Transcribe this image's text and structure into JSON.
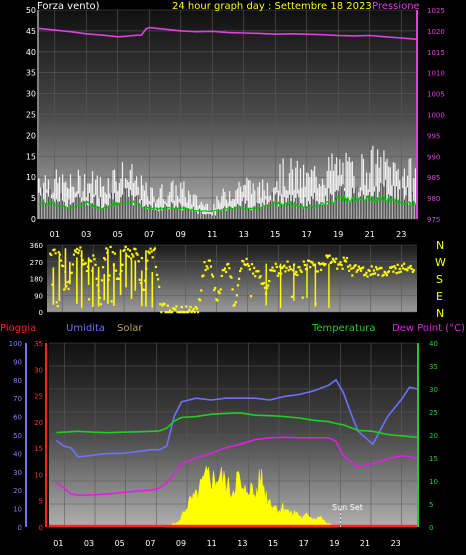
{
  "header": {
    "left_label": "Forza vento)",
    "title": "24 hour graph day : Settembre 18 2023",
    "right_label": "Pressione"
  },
  "colors": {
    "background": "#000000",
    "wind": "#ffffff",
    "gust_avg": "#00c800",
    "pressure": "#e040e0",
    "direction": "#ffff00",
    "title": "#ffff00",
    "rain": "#ff2020",
    "humidity": "#7070ff",
    "solar": "#ffff00",
    "temperature": "#20d020",
    "dewpoint": "#e020e0"
  },
  "x_ticks": [
    "01",
    "03",
    "05",
    "07",
    "09",
    "11",
    "13",
    "15",
    "17",
    "19",
    "21",
    "23"
  ],
  "chart_data": [
    {
      "type": "line",
      "title": "24 hour graph day : Settembre 18 2023",
      "left_axis_label": "Forza vento)",
      "right_axis_label": "Pressione",
      "x_range": [
        0,
        24
      ],
      "ylim_left": [
        0,
        50
      ],
      "yticks_left": [
        "0",
        "5",
        "10",
        "15",
        "20",
        "25",
        "30",
        "35",
        "40",
        "45",
        "50"
      ],
      "ylim_right": [
        975,
        1025
      ],
      "yticks_right": [
        "975",
        "980",
        "985",
        "990",
        "995",
        "1000",
        "1005",
        "1010",
        "1015",
        "1020",
        "1025"
      ],
      "series": [
        {
          "name": "Pressione",
          "axis": "right",
          "x": [
            0,
            1,
            2,
            3,
            4,
            5,
            5.5,
            6,
            6.5,
            6.8,
            7,
            7.5,
            8,
            9,
            10,
            11,
            12,
            13,
            14,
            15,
            16,
            17,
            18,
            19,
            20,
            21,
            22,
            23,
            24
          ],
          "values": [
            1020.6,
            1020.2,
            1019.8,
            1019.3,
            1019.0,
            1018.6,
            1018.7,
            1018.9,
            1019.0,
            1020.5,
            1020.8,
            1020.6,
            1020.4,
            1020.0,
            1019.8,
            1019.9,
            1019.6,
            1019.5,
            1019.4,
            1019.2,
            1019.3,
            1019.2,
            1019.1,
            1018.9,
            1018.8,
            1018.9,
            1018.6,
            1018.3,
            1018.0
          ]
        },
        {
          "name": "wind",
          "axis": "left",
          "x": [
            0,
            1,
            2,
            3,
            4,
            5,
            6,
            7,
            8,
            9,
            10,
            11,
            12,
            13,
            14,
            15,
            16,
            17,
            18,
            19,
            20,
            21,
            22,
            23,
            24
          ],
          "values": [
            6,
            5,
            4,
            5,
            4,
            6,
            5,
            3,
            3,
            3,
            2,
            1,
            3,
            4,
            3,
            5,
            5,
            4,
            5,
            6,
            6,
            7,
            7,
            6,
            5
          ]
        },
        {
          "name": "wind_gust",
          "axis": "left",
          "x": [
            0,
            1,
            2,
            3,
            4,
            5,
            6,
            7,
            8,
            9,
            10,
            11,
            12,
            13,
            14,
            15,
            16,
            17,
            18,
            19,
            20,
            21,
            22,
            23,
            24
          ],
          "values": [
            14,
            12,
            11,
            13,
            11,
            15,
            13,
            8,
            9,
            10,
            6,
            4,
            9,
            12,
            9,
            14,
            15,
            13,
            16,
            17,
            15,
            18,
            17,
            16,
            14
          ]
        },
        {
          "name": "wind_avg",
          "axis": "left",
          "x": [
            0,
            1,
            2,
            3,
            4,
            5,
            6,
            7,
            8,
            9,
            10,
            11,
            12,
            13,
            14,
            15,
            16,
            17,
            18,
            19,
            20,
            21,
            22,
            23,
            24
          ],
          "values": [
            2,
            2,
            1,
            2,
            1,
            2,
            2,
            1,
            1,
            1,
            0.5,
            0.3,
            1,
            1,
            1,
            2,
            2,
            1,
            2,
            3,
            3,
            3,
            3,
            2,
            2
          ]
        }
      ]
    },
    {
      "type": "scatter",
      "title": "",
      "x_range": [
        0,
        24
      ],
      "ylim": [
        0,
        360
      ],
      "yticks": [
        "0",
        "90",
        "180",
        "270",
        "360"
      ],
      "right_labels": [
        "N",
        "W",
        "S",
        "E",
        "N"
      ],
      "series": [
        {
          "name": "direction",
          "x": [
            0.2,
            0.6,
            1.0,
            1.4,
            1.8,
            2.2,
            2.6,
            3.0,
            3.4,
            3.8,
            4.2,
            4.6,
            5.0,
            5.4,
            5.8,
            6.2,
            6.6,
            7.0,
            7.4,
            7.8,
            8.2,
            8.6,
            9.0,
            9.4,
            9.8,
            10.2,
            10.6,
            11.0,
            11.4,
            11.8,
            12.2,
            12.6,
            13.0,
            13.4,
            13.8,
            14.2,
            14.6,
            15.0,
            15.4,
            15.8,
            16.2,
            16.6,
            17.0,
            17.4,
            17.8,
            18.2,
            18.6,
            19.0,
            19.4,
            19.8,
            20.2,
            20.6,
            21.0,
            21.4,
            21.8,
            22.2,
            22.6,
            23.0,
            23.4,
            23.8
          ],
          "values": [
            300,
            330,
            250,
            120,
            320,
            340,
            200,
            330,
            90,
            320,
            340,
            150,
            330,
            300,
            340,
            80,
            330,
            300,
            20,
            10,
            5,
            0,
            0,
            5,
            10,
            240,
            250,
            60,
            200,
            260,
            40,
            250,
            270,
            230,
            200,
            110,
            250,
            220,
            240,
            250,
            220,
            240,
            260,
            240,
            250,
            300,
            270,
            250,
            280,
            220,
            230,
            210,
            230,
            220,
            215,
            225,
            230,
            240,
            230,
            220
          ]
        }
      ]
    },
    {
      "type": "line",
      "legend": [
        "Pioggia",
        "Umidita",
        "Solar",
        "Temperatura",
        "Dew Point (°C)"
      ],
      "x_range": [
        0,
        24
      ],
      "ylim_rain": [
        0,
        35
      ],
      "ylim_humidity": [
        0,
        100
      ],
      "yticks_humidity": [
        "0",
        "10",
        "20",
        "30",
        "40",
        "50",
        "60",
        "70",
        "80",
        "90",
        "100"
      ],
      "yticks_rain": [
        "0",
        "5",
        "10",
        "15",
        "20",
        "25",
        "30",
        "35"
      ],
      "ylim_right": [
        0,
        40
      ],
      "yticks_right": [
        "0",
        "5",
        "10",
        "15",
        "20",
        "25",
        "30",
        "35",
        "40"
      ],
      "annotation": "Sun Set",
      "sunset_x": 18.8,
      "series": [
        {
          "name": "Umidita",
          "axis": "humidity",
          "x": [
            -0.5,
            0,
            0.5,
            1,
            2,
            3,
            4,
            5,
            6,
            6.5,
            7,
            7.5,
            8,
            9,
            10,
            11,
            12,
            13,
            14,
            15,
            16,
            17,
            18,
            18.5,
            19,
            19.5,
            20,
            21,
            22,
            23,
            23.5,
            24
          ],
          "values": [
            47,
            44,
            43,
            38,
            39,
            40,
            40,
            41,
            42,
            42,
            44,
            60,
            68,
            70,
            69,
            70,
            70,
            70,
            69,
            71,
            72,
            74,
            77,
            80,
            73,
            62,
            52,
            45,
            60,
            70,
            76,
            75
          ]
        },
        {
          "name": "Temperatura",
          "axis": "right",
          "x": [
            -0.5,
            0,
            1,
            2,
            3,
            4,
            5,
            6,
            6.5,
            7,
            7.5,
            8,
            9,
            10,
            11,
            12,
            13,
            14,
            15,
            16,
            17,
            18,
            18.5,
            19,
            20,
            21,
            22,
            23,
            24
          ],
          "values": [
            20.5,
            20.6,
            20.8,
            20.6,
            20.5,
            20.6,
            20.7,
            20.8,
            20.9,
            21.5,
            23,
            23.8,
            24.0,
            24.5,
            24.7,
            24.8,
            24.3,
            24.2,
            24.0,
            23.7,
            23.2,
            22.9,
            22.5,
            22.2,
            21.0,
            20.8,
            20.1,
            19.8,
            19.5
          ]
        },
        {
          "name": "Dew Point",
          "axis": "right",
          "x": [
            -0.5,
            0,
            0.5,
            1,
            2,
            3,
            4,
            5,
            6,
            6.5,
            7,
            7.5,
            8,
            9,
            10,
            11,
            12,
            13,
            14,
            15,
            16,
            17,
            18,
            18.5,
            19,
            20,
            21,
            22,
            23,
            24
          ],
          "values": [
            9.7,
            8.5,
            7.2,
            6.9,
            7.0,
            7.2,
            7.5,
            7.8,
            8.0,
            8.5,
            9.5,
            11.5,
            13.8,
            15.0,
            16.0,
            17.2,
            18.0,
            19.0,
            19.4,
            19.5,
            19.4,
            19.4,
            19.4,
            18.6,
            15.5,
            13.0,
            13.8,
            14.8,
            15.5,
            15.0
          ]
        },
        {
          "name": "Solar",
          "axis": "right",
          "x": [
            6.8,
            7,
            7.4,
            7.8,
            8.2,
            8.6,
            9.0,
            9.4,
            9.8,
            10.2,
            10.6,
            11.0,
            11.4,
            11.8,
            12.2,
            12.6,
            13.0,
            13.4,
            13.8,
            14.2,
            14.6,
            15.0,
            15.4,
            15.8,
            16.2,
            16.6,
            17.0,
            17.4,
            17.8,
            18.2,
            18.6
          ],
          "values": [
            0,
            0.3,
            0.8,
            1.0,
            4.0,
            6.0,
            7.0,
            10.0,
            12.0,
            11.0,
            12.0,
            10.5,
            8.0,
            12.0,
            7.5,
            10.0,
            7.0,
            12.0,
            7.0,
            5.5,
            4.0,
            5.0,
            3.0,
            3.5,
            2.0,
            3.0,
            2.0,
            2.5,
            1.0,
            0.5,
            0
          ]
        },
        {
          "name": "Pioggia",
          "axis": "rain",
          "x": [
            0,
            24
          ],
          "values": [
            0,
            0
          ]
        }
      ]
    }
  ]
}
